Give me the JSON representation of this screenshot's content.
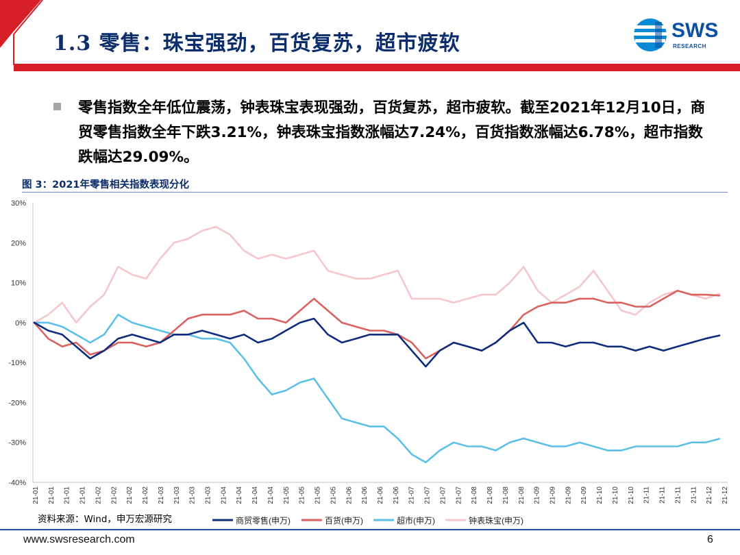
{
  "header": {
    "title": "1.3 零售：珠宝强劲，百货复苏，超市疲软",
    "logo_text": "SWS",
    "logo_sub": "RESEARCH",
    "colors": {
      "red": "#d61f26",
      "navy": "#0b2d6b",
      "logo_blue": "#0a4fa3"
    }
  },
  "bullet": {
    "text": "零售指数全年低位震荡，钟表珠宝表现强劲，百货复苏，超市疲软。截至2021年12月10日，商贸零售指数全年下跌3.21%，钟表珠宝指数涨幅达7.24%，百货指数涨幅达6.78%，超市指数跌幅达29.09%。"
  },
  "figure": {
    "title": "图 3：2021年零售相关指数表现分化",
    "source": "资料来源：Wind，申万宏源研究"
  },
  "footer": {
    "url": "www.swsresearch.com",
    "page": "6"
  },
  "chart_data": {
    "type": "line",
    "title": "",
    "xlabel": "",
    "ylabel": "",
    "ylim": [
      -40,
      30
    ],
    "yticks": [
      "30%",
      "20%",
      "10%",
      "0%",
      "-10%",
      "-20%",
      "-30%",
      "-40%"
    ],
    "ytick_values": [
      30,
      20,
      10,
      0,
      -10,
      -20,
      -30,
      -40
    ],
    "x_tick_labels": [
      "21-01",
      "21-01",
      "21-01",
      "21-01",
      "21-02",
      "21-02",
      "21-02",
      "21-02",
      "21-03",
      "21-03",
      "21-03",
      "21-03",
      "21-04",
      "21-04",
      "21-04",
      "21-04",
      "21-05",
      "21-05",
      "21-05",
      "21-05",
      "21-06",
      "21-06",
      "21-06",
      "21-06",
      "21-07",
      "21-07",
      "21-07",
      "21-07",
      "21-08",
      "21-08",
      "21-08",
      "21-08",
      "21-09",
      "21-09",
      "21-09",
      "21-09",
      "21-10",
      "21-10",
      "21-10",
      "21-11",
      "21-11",
      "21-11",
      "21-11",
      "21-12",
      "21-12"
    ],
    "x": [
      "2021-01-04",
      "2021-01-11",
      "2021-01-18",
      "2021-01-25",
      "2021-02-01",
      "2021-02-08",
      "2021-02-15",
      "2021-02-22",
      "2021-03-01",
      "2021-03-08",
      "2021-03-15",
      "2021-03-22",
      "2021-03-29",
      "2021-04-05",
      "2021-04-12",
      "2021-04-19",
      "2021-04-26",
      "2021-05-03",
      "2021-05-10",
      "2021-05-17",
      "2021-05-24",
      "2021-05-31",
      "2021-06-07",
      "2021-06-14",
      "2021-06-21",
      "2021-06-28",
      "2021-07-05",
      "2021-07-12",
      "2021-07-19",
      "2021-07-26",
      "2021-08-02",
      "2021-08-09",
      "2021-08-16",
      "2021-08-23",
      "2021-08-30",
      "2021-09-06",
      "2021-09-13",
      "2021-09-20",
      "2021-09-27",
      "2021-10-04",
      "2021-10-11",
      "2021-10-18",
      "2021-10-25",
      "2021-11-01",
      "2021-11-08",
      "2021-11-15",
      "2021-11-22",
      "2021-11-29",
      "2021-12-06",
      "2021-12-10"
    ],
    "series": [
      {
        "name": "商贸零售(申万)",
        "color": "#0d2c7e",
        "values": [
          0,
          -2,
          -3,
          -6,
          -9,
          -7,
          -4,
          -3,
          -4,
          -5,
          -3,
          -3,
          -2,
          -3,
          -4,
          -3,
          -5,
          -4,
          -2,
          0,
          1,
          -3,
          -5,
          -4,
          -3,
          -3,
          -3,
          -7,
          -11,
          -7,
          -5,
          -6,
          -7,
          -5,
          -2,
          0,
          -5,
          -5,
          -6,
          -5,
          -5,
          -6,
          -6,
          -7,
          -6,
          -7,
          -6,
          -5,
          -4,
          -3.21
        ]
      },
      {
        "name": "百货(申万)",
        "color": "#d9615e",
        "values": [
          0,
          -4,
          -6,
          -5,
          -8,
          -7,
          -5,
          -5,
          -6,
          -5,
          -2,
          1,
          2,
          2,
          2,
          3,
          1,
          1,
          0,
          3,
          6,
          3,
          0,
          -1,
          -2,
          -2,
          -3,
          -5,
          -9,
          -7,
          -5,
          -6,
          -7,
          -5,
          -2,
          2,
          4,
          5,
          5,
          6,
          6,
          5,
          5,
          4,
          4,
          6,
          8,
          7,
          7,
          6.78
        ]
      },
      {
        "name": "超市(申万)",
        "color": "#5bc0e8",
        "values": [
          0,
          0,
          -1,
          -3,
          -5,
          -3,
          2,
          0,
          -1,
          -2,
          -3,
          -3,
          -4,
          -4,
          -5,
          -9,
          -14,
          -18,
          -17,
          -15,
          -14,
          -19,
          -24,
          -25,
          -26,
          -26,
          -29,
          -33,
          -35,
          -32,
          -30,
          -31,
          -31,
          -32,
          -30,
          -29,
          -30,
          -31,
          -31,
          -30,
          -31,
          -32,
          -32,
          -31,
          -31,
          -31,
          -31,
          -30,
          -30,
          -29.09
        ]
      },
      {
        "name": "钟表珠宝(申万)",
        "color": "#f5c6cb",
        "values": [
          0,
          2,
          5,
          0,
          4,
          7,
          14,
          12,
          11,
          16,
          20,
          21,
          23,
          24,
          22,
          18,
          16,
          17,
          16,
          17,
          18,
          13,
          12,
          11,
          11,
          12,
          13,
          6,
          6,
          6,
          5,
          6,
          7,
          7,
          10,
          14,
          8,
          5,
          7,
          9,
          13,
          8,
          3,
          2,
          5,
          7,
          8,
          7,
          6,
          7.24
        ]
      }
    ],
    "legend_placement": "bottom",
    "grid": false
  }
}
